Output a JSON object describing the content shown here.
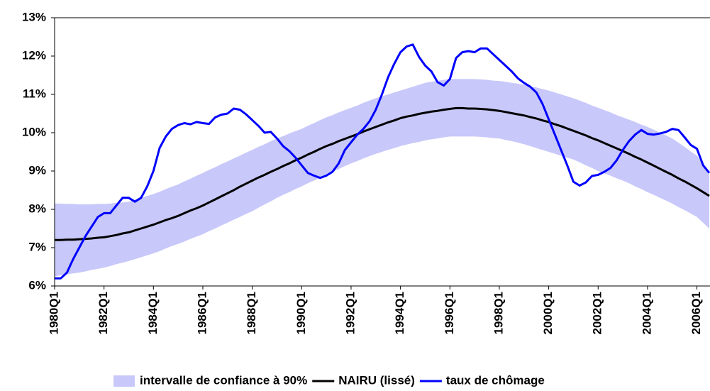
{
  "chart_data": {
    "type": "line",
    "categories": [
      "1980Q1",
      null,
      null,
      null,
      null,
      null,
      null,
      null,
      "1982Q1",
      null,
      null,
      null,
      null,
      null,
      null,
      null,
      "1984Q1",
      null,
      null,
      null,
      null,
      null,
      null,
      null,
      "1986Q1",
      null,
      null,
      null,
      null,
      null,
      null,
      null,
      "1988Q1",
      null,
      null,
      null,
      null,
      null,
      null,
      null,
      "1990Q1",
      null,
      null,
      null,
      null,
      null,
      null,
      null,
      "1992Q1",
      null,
      null,
      null,
      null,
      null,
      null,
      null,
      "1994Q1",
      null,
      null,
      null,
      null,
      null,
      null,
      null,
      "1996Q1",
      null,
      null,
      null,
      null,
      null,
      null,
      null,
      "1998Q1",
      null,
      null,
      null,
      null,
      null,
      null,
      null,
      "2000Q1",
      null,
      null,
      null,
      null,
      null,
      null,
      null,
      "2002Q1",
      null,
      null,
      null,
      null,
      null,
      null,
      null,
      "2004Q1",
      null,
      null,
      null,
      null,
      null,
      null,
      null,
      "2006Q1",
      null,
      null
    ],
    "series": [
      {
        "name": "intervalle de confiance à 90%",
        "color": "#c8c8fa",
        "upper": [
          8.15,
          8.15,
          8.14,
          8.14,
          8.13,
          8.13,
          8.13,
          8.14,
          8.14,
          8.15,
          8.17,
          8.18,
          8.2,
          8.25,
          8.3,
          8.35,
          8.4,
          8.46,
          8.53,
          8.59,
          8.65,
          8.73,
          8.8,
          8.88,
          8.95,
          9.03,
          9.1,
          9.18,
          9.25,
          9.33,
          9.4,
          9.48,
          9.55,
          9.63,
          9.7,
          9.78,
          9.85,
          9.91,
          9.98,
          10.04,
          10.1,
          10.18,
          10.25,
          10.33,
          10.4,
          10.46,
          10.53,
          10.59,
          10.65,
          10.71,
          10.78,
          10.84,
          10.9,
          10.95,
          11.0,
          11.05,
          11.1,
          11.15,
          11.2,
          11.25,
          11.3,
          11.33,
          11.35,
          11.38,
          11.4,
          11.4,
          11.4,
          11.4,
          11.4,
          11.39,
          11.38,
          11.36,
          11.35,
          11.33,
          11.3,
          11.28,
          11.25,
          11.21,
          11.18,
          11.14,
          11.1,
          11.05,
          11.0,
          10.95,
          10.9,
          10.84,
          10.78,
          10.71,
          10.65,
          10.59,
          10.53,
          10.46,
          10.4,
          10.34,
          10.28,
          10.21,
          10.15,
          10.08,
          10.0,
          9.93,
          9.85,
          9.74,
          9.63,
          9.51,
          9.4,
          9.15,
          8.9
        ],
        "lower": [
          6.25,
          6.28,
          6.3,
          6.33,
          6.35,
          6.38,
          6.42,
          6.45,
          6.48,
          6.52,
          6.57,
          6.61,
          6.65,
          6.7,
          6.75,
          6.8,
          6.85,
          6.91,
          6.98,
          7.04,
          7.1,
          7.16,
          7.23,
          7.29,
          7.35,
          7.43,
          7.5,
          7.58,
          7.65,
          7.73,
          7.8,
          7.88,
          7.95,
          8.04,
          8.13,
          8.21,
          8.3,
          8.38,
          8.45,
          8.53,
          8.6,
          8.68,
          8.75,
          8.83,
          8.9,
          8.98,
          9.05,
          9.13,
          9.2,
          9.26,
          9.33,
          9.39,
          9.45,
          9.5,
          9.55,
          9.6,
          9.65,
          9.69,
          9.73,
          9.76,
          9.8,
          9.83,
          9.85,
          9.88,
          9.9,
          9.9,
          9.9,
          9.9,
          9.9,
          9.89,
          9.88,
          9.86,
          9.85,
          9.81,
          9.78,
          9.74,
          9.7,
          9.65,
          9.6,
          9.55,
          9.5,
          9.45,
          9.4,
          9.35,
          9.3,
          9.23,
          9.15,
          9.08,
          9.0,
          8.94,
          8.88,
          8.81,
          8.75,
          8.68,
          8.6,
          8.53,
          8.45,
          8.38,
          8.3,
          8.23,
          8.15,
          8.06,
          7.98,
          7.89,
          7.8,
          7.65,
          7.5
        ]
      },
      {
        "name": "NAIRU (lissé)",
        "color": "#000000",
        "values": [
          7.2,
          7.2,
          7.21,
          7.21,
          7.22,
          7.23,
          7.24,
          7.26,
          7.27,
          7.3,
          7.33,
          7.37,
          7.4,
          7.45,
          7.5,
          7.55,
          7.6,
          7.66,
          7.72,
          7.77,
          7.83,
          7.9,
          7.97,
          8.03,
          8.1,
          8.18,
          8.26,
          8.34,
          8.42,
          8.5,
          8.59,
          8.67,
          8.75,
          8.83,
          8.9,
          8.98,
          9.05,
          9.13,
          9.2,
          9.28,
          9.35,
          9.43,
          9.5,
          9.58,
          9.65,
          9.71,
          9.78,
          9.84,
          9.9,
          9.96,
          10.03,
          10.09,
          10.15,
          10.21,
          10.27,
          10.32,
          10.38,
          10.42,
          10.45,
          10.49,
          10.52,
          10.55,
          10.57,
          10.6,
          10.62,
          10.64,
          10.64,
          10.63,
          10.63,
          10.62,
          10.61,
          10.59,
          10.57,
          10.54,
          10.51,
          10.48,
          10.45,
          10.41,
          10.37,
          10.32,
          10.28,
          10.22,
          10.17,
          10.11,
          10.05,
          9.99,
          9.93,
          9.86,
          9.8,
          9.73,
          9.66,
          9.59,
          9.52,
          9.45,
          9.37,
          9.3,
          9.22,
          9.14,
          9.06,
          8.98,
          8.9,
          8.81,
          8.73,
          8.64,
          8.55,
          8.45,
          8.35
        ]
      },
      {
        "name": "taux de chômage",
        "color": "#0000ff",
        "values": [
          6.2,
          6.2,
          6.35,
          6.7,
          7.0,
          7.3,
          7.55,
          7.8,
          7.9,
          7.9,
          8.1,
          8.3,
          8.3,
          8.2,
          8.3,
          8.6,
          9.0,
          9.6,
          9.9,
          10.1,
          10.2,
          10.25,
          10.22,
          10.28,
          10.25,
          10.23,
          10.4,
          10.47,
          10.5,
          10.63,
          10.6,
          10.48,
          10.33,
          10.18,
          10.0,
          10.02,
          9.85,
          9.65,
          9.52,
          9.35,
          9.15,
          8.95,
          8.88,
          8.82,
          8.88,
          8.98,
          9.2,
          9.55,
          9.75,
          9.95,
          10.1,
          10.3,
          10.6,
          11.0,
          11.45,
          11.8,
          12.1,
          12.25,
          12.3,
          11.98,
          11.75,
          11.6,
          11.32,
          11.23,
          11.4,
          11.95,
          12.1,
          12.13,
          12.1,
          12.2,
          12.2,
          12.05,
          11.9,
          11.75,
          11.6,
          11.42,
          11.3,
          11.2,
          11.05,
          10.75,
          10.35,
          9.95,
          9.55,
          9.15,
          8.72,
          8.62,
          8.7,
          8.87,
          8.9,
          8.98,
          9.08,
          9.28,
          9.55,
          9.78,
          9.95,
          10.07,
          9.97,
          9.95,
          9.98,
          10.02,
          10.1,
          10.07,
          9.88,
          9.68,
          9.58,
          9.15,
          8.95
        ]
      }
    ],
    "ylim": [
      6,
      13
    ],
    "yticks": [
      {
        "value": 6,
        "label": "6%"
      },
      {
        "value": 7,
        "label": "7%"
      },
      {
        "value": 8,
        "label": "8%"
      },
      {
        "value": 9,
        "label": "9%"
      },
      {
        "value": 10,
        "label": "10%"
      },
      {
        "value": 11,
        "label": "11%"
      },
      {
        "value": 12,
        "label": "12%"
      },
      {
        "value": 13,
        "label": "13%"
      }
    ]
  }
}
